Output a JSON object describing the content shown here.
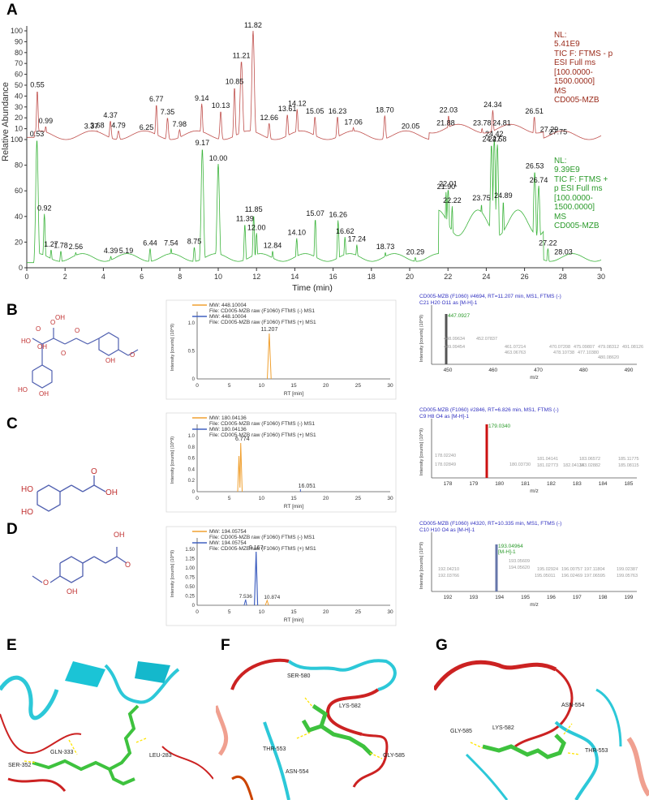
{
  "panel_letters": {
    "a": "A",
    "b": "B",
    "c": "C",
    "d": "D",
    "e": "E",
    "f": "F",
    "g": "G"
  },
  "colors": {
    "red": "#c0504d",
    "green": "#3cb43c",
    "orange": "#f0a030",
    "blue": "#4060c0",
    "spec_blue": "#3030c0"
  },
  "panelA": {
    "ylabel": "Relative Abundance",
    "xlabel": "Time (min)",
    "yticks": [
      0,
      10,
      20,
      30,
      40,
      50,
      60,
      70,
      80,
      90,
      100
    ],
    "yticks_bottom": [
      0,
      20,
      40,
      60,
      80,
      100
    ],
    "xticks": [
      0,
      2,
      4,
      6,
      8,
      10,
      12,
      14,
      16,
      18,
      20,
      22,
      24,
      26,
      28,
      30
    ],
    "top_nl": [
      "NL:",
      "5.41E9",
      "TIC F: FTMS - p",
      "ESI Full ms",
      "[100.0000-",
      "1500.0000]",
      "MS",
      "CD005-MZB"
    ],
    "bottom_nl": [
      "NL:",
      "9.39E9",
      "TIC F: FTMS +",
      "p ESI Full ms",
      "[100.0000-",
      "1500.0000]",
      "MS",
      "CD005-MZB"
    ]
  },
  "chart_data": [
    {
      "type": "line",
      "name": "TIC negative",
      "xlim": [
        0,
        30
      ],
      "ylim": [
        0,
        100
      ],
      "peaks": [
        [
          0.55,
          45,
          "0.55"
        ],
        [
          0.99,
          12,
          "0.99"
        ],
        [
          3.37,
          7,
          "3.37"
        ],
        [
          3.68,
          8,
          "3.68"
        ],
        [
          4.37,
          17,
          "4.37"
        ],
        [
          4.79,
          8,
          "4.79"
        ],
        [
          6.25,
          6,
          "6.25"
        ],
        [
          6.77,
          32,
          "6.77"
        ],
        [
          7.35,
          20,
          "7.35"
        ],
        [
          7.98,
          9,
          "7.98"
        ],
        [
          9.14,
          33,
          "9.14"
        ],
        [
          10.13,
          26,
          "10.13"
        ],
        [
          10.85,
          48,
          "10.85"
        ],
        [
          11.21,
          72,
          "11.21"
        ],
        [
          11.82,
          100,
          "11.82"
        ],
        [
          12.66,
          15,
          "12.66"
        ],
        [
          13.61,
          23,
          "13.61"
        ],
        [
          14.12,
          28,
          "14.12"
        ],
        [
          15.05,
          21,
          "15.05"
        ],
        [
          16.23,
          21,
          "16.23"
        ],
        [
          17.06,
          11,
          "17.06"
        ],
        [
          18.7,
          22,
          "18.70"
        ],
        [
          20.05,
          7,
          "20.05"
        ],
        [
          21.88,
          10,
          "21.88"
        ],
        [
          22.03,
          22,
          "22.03"
        ],
        [
          23.78,
          10,
          "23.78"
        ],
        [
          24.34,
          27,
          "24.34"
        ],
        [
          24.81,
          10,
          "24.81"
        ],
        [
          26.51,
          21,
          "26.51"
        ],
        [
          27.29,
          4,
          "27.29"
        ],
        [
          27.75,
          2,
          "27.75"
        ]
      ]
    },
    {
      "type": "line",
      "name": "TIC positive",
      "xlim": [
        0,
        30
      ],
      "ylim": [
        0,
        100
      ],
      "peaks": [
        [
          0.53,
          100,
          "0.53"
        ],
        [
          0.92,
          42,
          "0.92"
        ],
        [
          1.27,
          14,
          "1.27"
        ],
        [
          1.78,
          13,
          "1.78"
        ],
        [
          2.56,
          12,
          "2.56"
        ],
        [
          4.39,
          9,
          "4.39"
        ],
        [
          5.19,
          9,
          "5.19"
        ],
        [
          6.44,
          15,
          "6.44"
        ],
        [
          7.54,
          15,
          "7.54"
        ],
        [
          8.75,
          16,
          "8.75"
        ],
        [
          9.17,
          93,
          "9.17"
        ],
        [
          10,
          81,
          "10.00"
        ],
        [
          11.39,
          34,
          "11.39"
        ],
        [
          11.85,
          41,
          "11.85"
        ],
        [
          12,
          27,
          "12.00"
        ],
        [
          12.84,
          13,
          "12.84"
        ],
        [
          14.1,
          23,
          "14.10"
        ],
        [
          15.07,
          38,
          "15.07"
        ],
        [
          16.26,
          37,
          "16.26"
        ],
        [
          16.62,
          24,
          "16.62"
        ],
        [
          17.24,
          18,
          "17.24"
        ],
        [
          18.73,
          12,
          "18.73"
        ],
        [
          20.29,
          8,
          "20.29"
        ],
        [
          21.9,
          59,
          "21.90"
        ],
        [
          22.01,
          61,
          "22.01"
        ],
        [
          22.22,
          48,
          "22.22"
        ],
        [
          23.75,
          50,
          "23.75"
        ],
        [
          24.27,
          96,
          "24.27"
        ],
        [
          24.42,
          100,
          "24.42"
        ],
        [
          24.58,
          96,
          "24.58"
        ],
        [
          24.89,
          52,
          "24.89"
        ],
        [
          26.53,
          75,
          "26.53"
        ],
        [
          26.74,
          64,
          "26.74"
        ],
        [
          27.22,
          15,
          "27.22"
        ],
        [
          28.03,
          8,
          "28.03"
        ]
      ]
    }
  ],
  "panelB": {
    "legend": [
      "MW: 448.10004",
      "File: CD005-MZB raw (F1060) FTMS (-) MS1",
      "MW: 448.10004",
      "File: CD005-MZB raw (F1060) FTMS (+) MS1"
    ],
    "peak_label": "11.207",
    "peak_rt": 11.207,
    "peak_h": 1.2,
    "yticks": [
      "0",
      "0.5",
      "1.0"
    ],
    "y_max": 1.3,
    "ylabel": "Intensity [counts] (10^9)",
    "xlabel": "RT [min]",
    "spec_title": "CD005-MZB (F1060) #4694, RT=11.207 min, MS1, FTMS (-)",
    "spec_formula": "C21 H20 O11 as [M-H]-1",
    "spec_ylabel": "Intensity [counts] (10^9)",
    "spec_xlabel": "m/z",
    "spec_xticks": [
      "450",
      "460",
      "470",
      "480",
      "490"
    ],
    "spec_yticks": [
      "0.0",
      "0.5",
      "1.0",
      "1.5"
    ],
    "spec_main": "447.0927",
    "spec_labels": [
      "448.09634",
      "449.09454",
      "452.07837",
      "461.07214",
      "463.06763",
      "470.07208",
      "475.09807",
      "478.10738",
      "477.10380",
      "479.08312",
      "480.08620",
      "491.08126"
    ]
  },
  "panelC": {
    "legend": [
      "MW: 180.04136",
      "File: CD005-MZB raw (F1060) FTMS (-) MS1",
      "MW: 180.04136",
      "File: CD005-MZB raw (F1060) FTMS (+) MS1"
    ],
    "peak_label": "6.774",
    "peak2_label": "16.051",
    "yticks": [
      "0",
      "0.2",
      "0.4",
      "0.6",
      "0.8",
      "1.0"
    ],
    "ylabel": "Intensity [counts] (10^9)",
    "xlabel": "RT [min]",
    "spec_title": "CD005-MZB (F1060) #2846, RT=6.826 min, MS1, FTMS (-)",
    "spec_formula": "C9 H8 O4 as [M-H]-1",
    "spec_ylabel": "Intensity [counts] (10^9)",
    "spec_xlabel": "m/z",
    "spec_xticks": [
      "178",
      "179",
      "180",
      "181",
      "182",
      "183",
      "184",
      "185"
    ],
    "spec_main": "179.0340",
    "spec_labels": [
      "178.02240",
      "178.02849",
      "180.03730",
      "181.04141",
      "181.02773",
      "182.04134",
      "183.06572",
      "183.02882",
      "185.11775",
      "185.08115"
    ]
  },
  "panelD": {
    "legend": [
      "MW: 194.05754",
      "File: CD005-MZB raw (F1060) FTMS (-) MS1",
      "MW: 194.05754",
      "File: CD005-MZB raw (F1060) FTMS (+) MS1"
    ],
    "peak_label": "9.167",
    "peak2_label": "7.536",
    "peak3_label": "10.874",
    "yticks": [
      "0",
      "0.25",
      "0.50",
      "0.75",
      "1.00",
      "1.25",
      "1.50"
    ],
    "ylabel": "Intensity [counts] (10^9)",
    "xlabel": "RT [min]",
    "spec_title": "CD005-MZB (F1060) #4320, RT=10.335 min, MS1, FTMS (-)",
    "spec_formula": "C10 H10 O4 as [M-H]-1",
    "spec_ylabel": "Intensity [counts] (10^9)",
    "spec_xlabel": "m/z",
    "spec_xticks": [
      "192",
      "193",
      "194",
      "195",
      "196",
      "197",
      "198",
      "199"
    ],
    "spec_main": "193.04964",
    "spec_main2": "[M-H]-1",
    "spec_labels": [
      "192.04210",
      "192.03766",
      "193.05609",
      "194.05620",
      "195.02924",
      "195.05011",
      "196.00757",
      "196.02469",
      "197.11804",
      "197.06595",
      "199.02387",
      "199.05763"
    ]
  },
  "panelE": {
    "residues": [
      "GLN-333",
      "LEU-283",
      "SER-352"
    ]
  },
  "panelF": {
    "residues": [
      "SER-580",
      "LYS-582",
      "THR-553",
      "GLY-585",
      "ASN-554"
    ]
  },
  "panelG": {
    "residues": [
      "GLY-585",
      "LYS-582",
      "ASN-554",
      "THR-553"
    ]
  }
}
